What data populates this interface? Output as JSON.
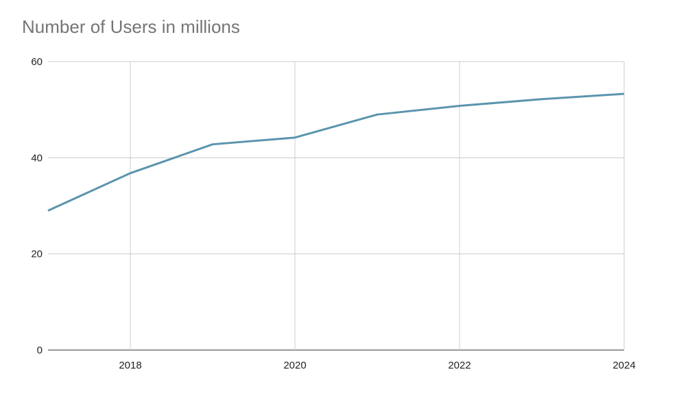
{
  "chart_data": {
    "type": "line",
    "title": "Number of Users in millions",
    "xlabel": "",
    "ylabel": "",
    "x": [
      2017,
      2018,
      2019,
      2020,
      2021,
      2022,
      2023,
      2024
    ],
    "series": [
      {
        "name": "Number of Users in millions",
        "values": [
          29,
          36.8,
          42.8,
          44.2,
          49.0,
          50.8,
          52.2,
          53.3
        ],
        "color": "#5b94ad"
      }
    ],
    "xlim": [
      2017,
      2024
    ],
    "ylim": [
      0,
      60
    ],
    "xticks": [
      "2018",
      "2020",
      "2022",
      "2024"
    ],
    "yticks": [
      "0",
      "20",
      "40",
      "60"
    ],
    "grid": true,
    "legend": "none"
  }
}
